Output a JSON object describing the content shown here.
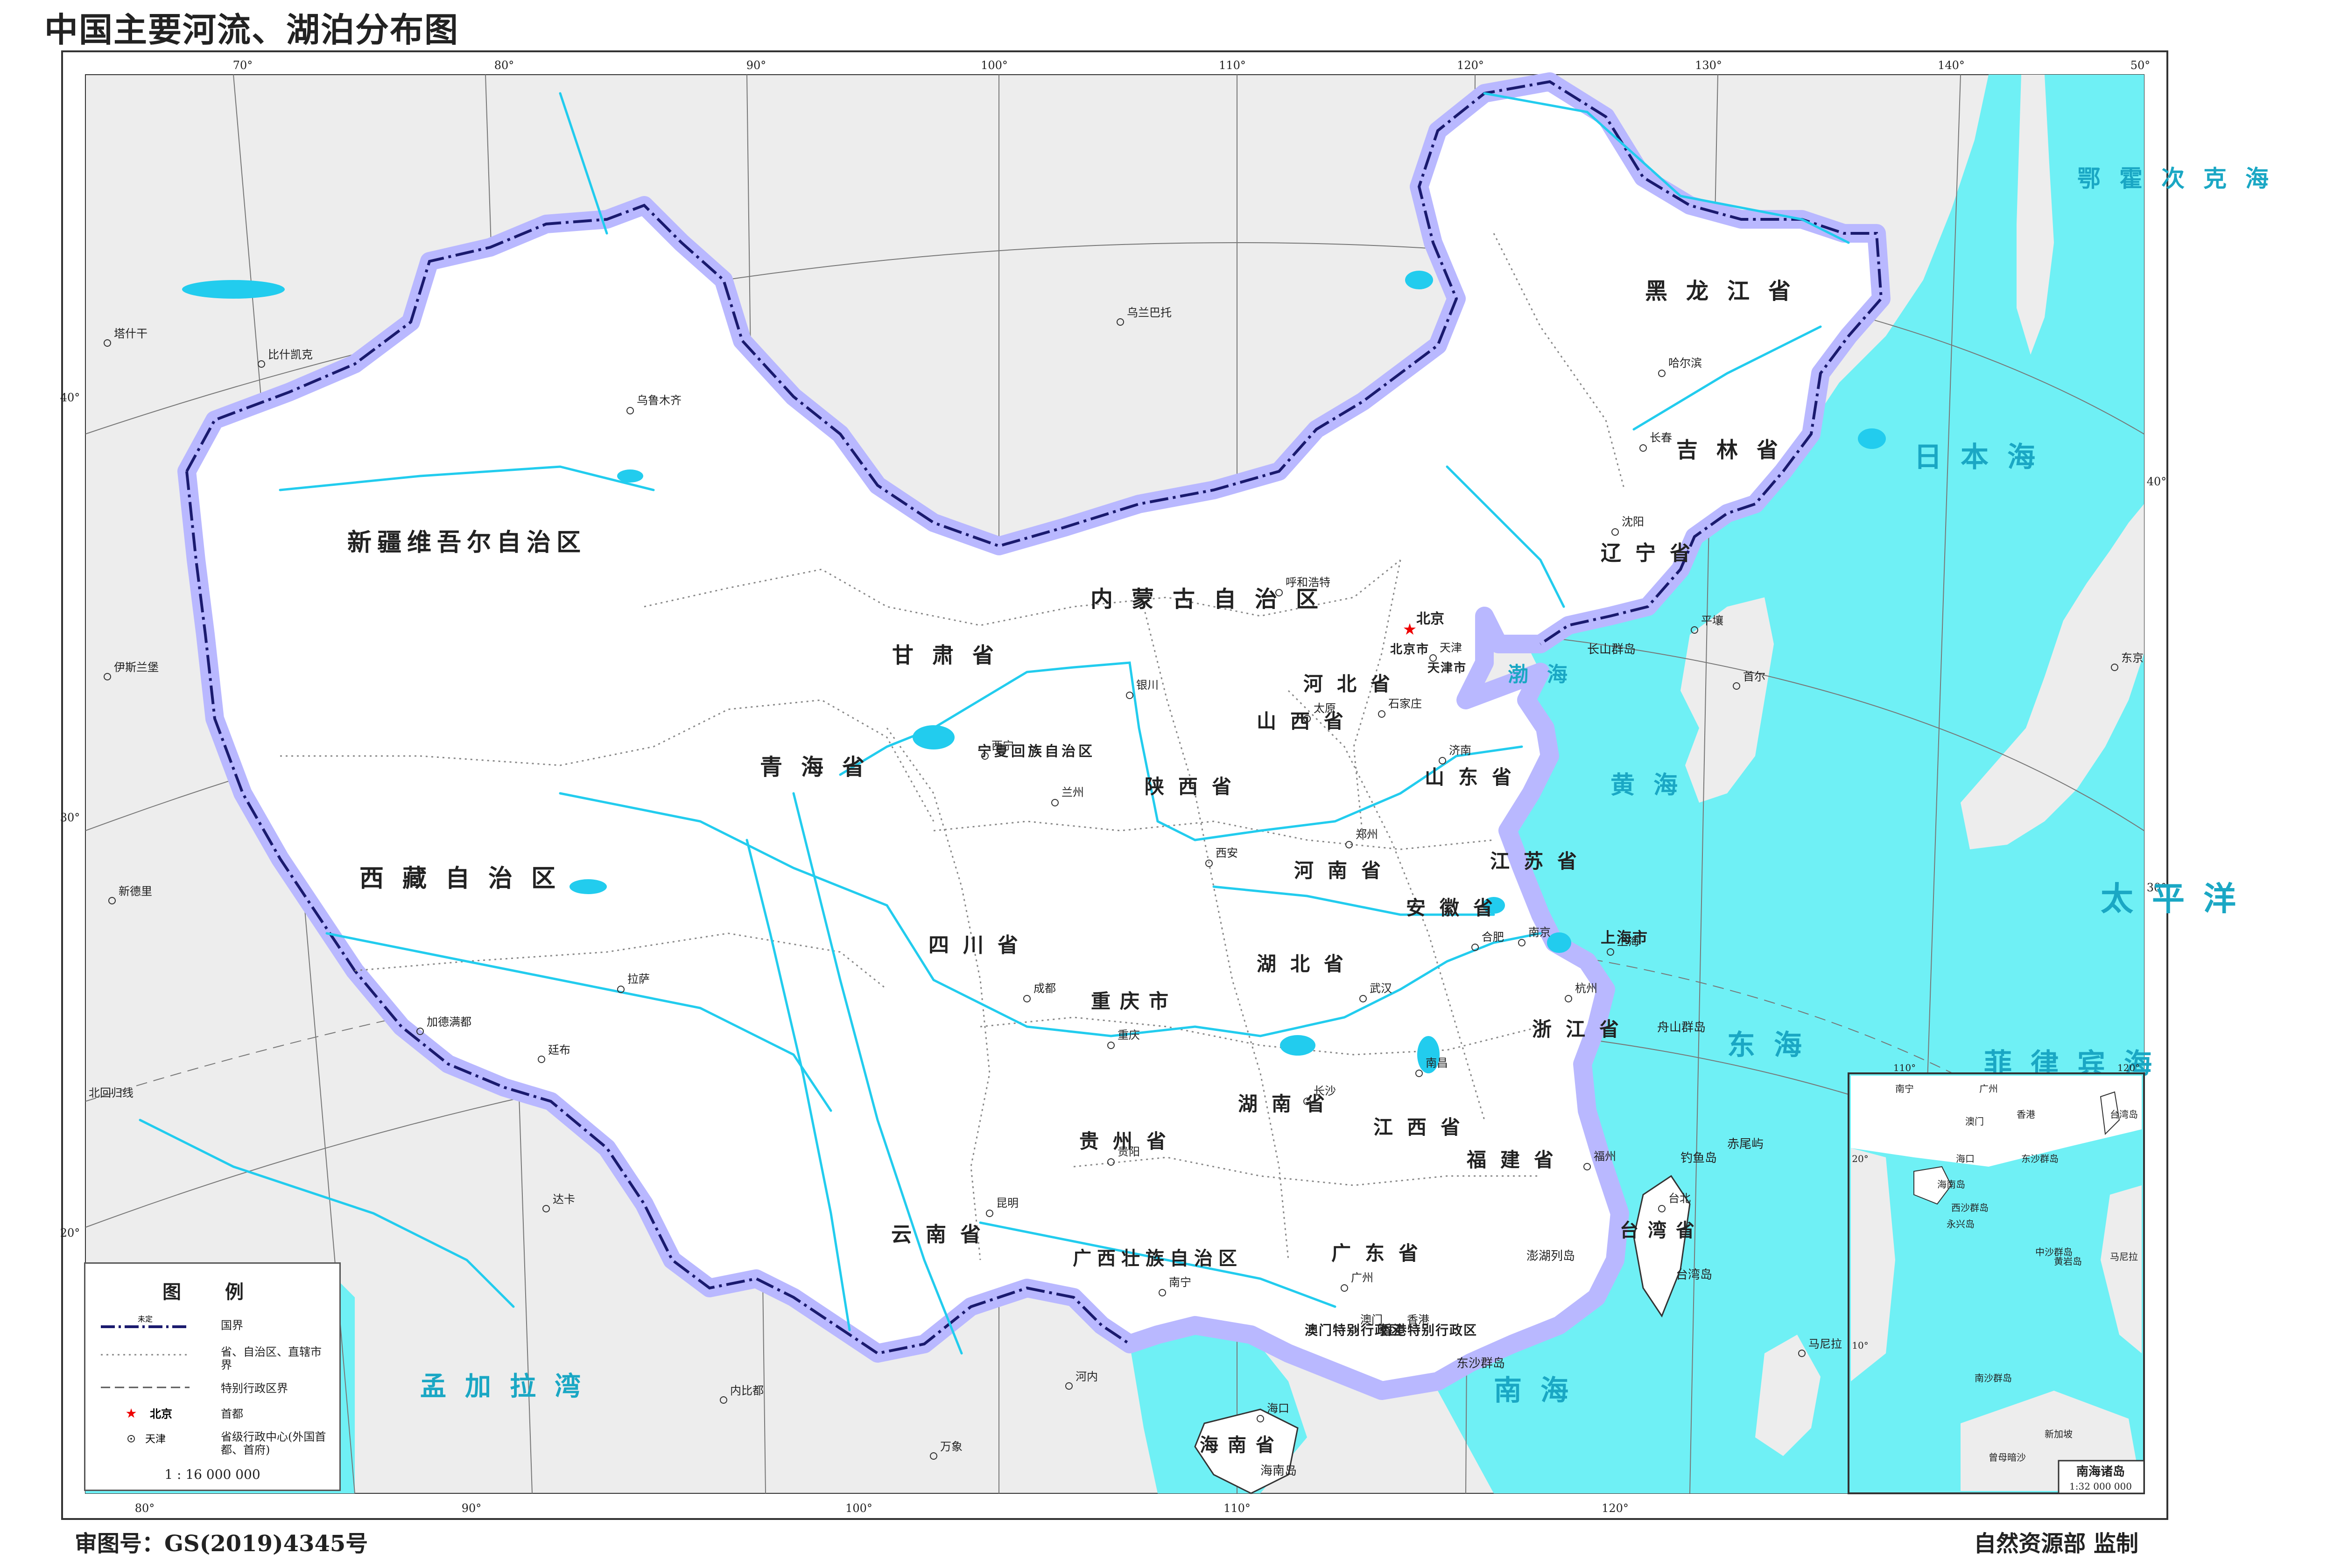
{
  "title": "中国主要河流、湖泊分布图",
  "footer": {
    "approval": "审图号：GS(2019)4345号",
    "supervisor": "自然资源部  监制"
  },
  "longitude_labels_top": [
    "70°",
    "80°",
    "90°",
    "100°",
    "110°",
    "120°",
    "130°",
    "140°",
    "50°"
  ],
  "longitude_labels_bottom": [
    "80°",
    "90°",
    "100°",
    "110°",
    "120°"
  ],
  "latitude_labels_left": [
    "40°",
    "30°",
    "20°"
  ],
  "latitude_labels_right": [
    "40°",
    "30°"
  ],
  "tropic_label": "北回归线",
  "provinces": [
    "新疆维吾尔自治区",
    "西藏自治区",
    "青海省",
    "甘肃省",
    "内蒙古自治区",
    "黑龙江省",
    "吉林省",
    "辽宁省",
    "河北省",
    "山西省",
    "陕西省",
    "宁夏回族自治区",
    "四川省",
    "重庆市",
    "云南省",
    "贵州省",
    "广西壮族自治区",
    "广东省",
    "湖南省",
    "湖北省",
    "河南省",
    "山东省",
    "江苏省",
    "安徽省",
    "浙江省",
    "江西省",
    "福建省",
    "台湾省",
    "海南省",
    "北京市",
    "天津市",
    "上海市",
    "香港特别行政区",
    "澳门特别行政区"
  ],
  "capitals": [
    "北京",
    "乌鲁木齐",
    "拉萨",
    "西宁",
    "兰州",
    "银川",
    "呼和浩特",
    "哈尔滨",
    "长春",
    "沈阳",
    "石家庄",
    "太原",
    "济南",
    "郑州",
    "西安",
    "成都",
    "重庆",
    "昆明",
    "贵阳",
    "南宁",
    "广州",
    "长沙",
    "武汉",
    "南昌",
    "合肥",
    "南京",
    "上海",
    "杭州",
    "福州",
    "台北",
    "海口",
    "天津",
    "香港",
    "澳门"
  ],
  "foreign_places": [
    "塔什干",
    "比什凯克",
    "伊斯兰堡",
    "新德里",
    "加德满都",
    "廷布",
    "达卡",
    "内比都",
    "河内",
    "万象",
    "乌兰巴托",
    "平壤",
    "首尔",
    "东京",
    "马尼拉"
  ],
  "islands": [
    "长山群岛",
    "舟山群岛",
    "钓鱼岛",
    "赤尾屿",
    "澎湖列岛",
    "台湾岛",
    "东沙群岛",
    "海南岛",
    "西沙群岛",
    "中沙群岛",
    "黄岩岛",
    "南沙群岛",
    "永兴岛",
    "曾母暗沙"
  ],
  "seas": [
    "渤海",
    "黄海",
    "东海",
    "南海",
    "日本海",
    "太平洋",
    "孟加拉湾",
    "鄂霍次克海",
    "菲律宾海"
  ],
  "legend": {
    "title": "图  例",
    "undetermined": "未定",
    "items": [
      {
        "label": "国界"
      },
      {
        "label": "省、自治区、直辖市界"
      },
      {
        "label": "特别行政区界"
      },
      {
        "symbol_text": "北京",
        "label": "首都"
      },
      {
        "symbol_text": "天津",
        "label": "省级行政中心(外国首都、首府)"
      }
    ],
    "scale": "1 : 16 000 000"
  },
  "inset": {
    "caption": "南海诸岛",
    "scale": "1:32 000 000",
    "places": [
      "南宁",
      "广州",
      "香港",
      "澳门",
      "台湾岛",
      "海口",
      "东沙群岛",
      "海南岛",
      "西沙群岛",
      "永兴岛",
      "中沙群岛",
      "黄岩岛",
      "马尼拉",
      "南沙群岛",
      "新加坡",
      "曾母暗沙"
    ],
    "lon_labels": [
      "110°",
      "120°"
    ],
    "lat_labels": [
      "20°",
      "10°"
    ]
  },
  "colors": {
    "sea": "#6ff0f5",
    "land_china": "#ffffff",
    "land_foreign": "#ededed",
    "border_glow": "#b9b8ff",
    "border": "#1a1a6e",
    "river": "#22ccee",
    "frame": "#333333"
  }
}
